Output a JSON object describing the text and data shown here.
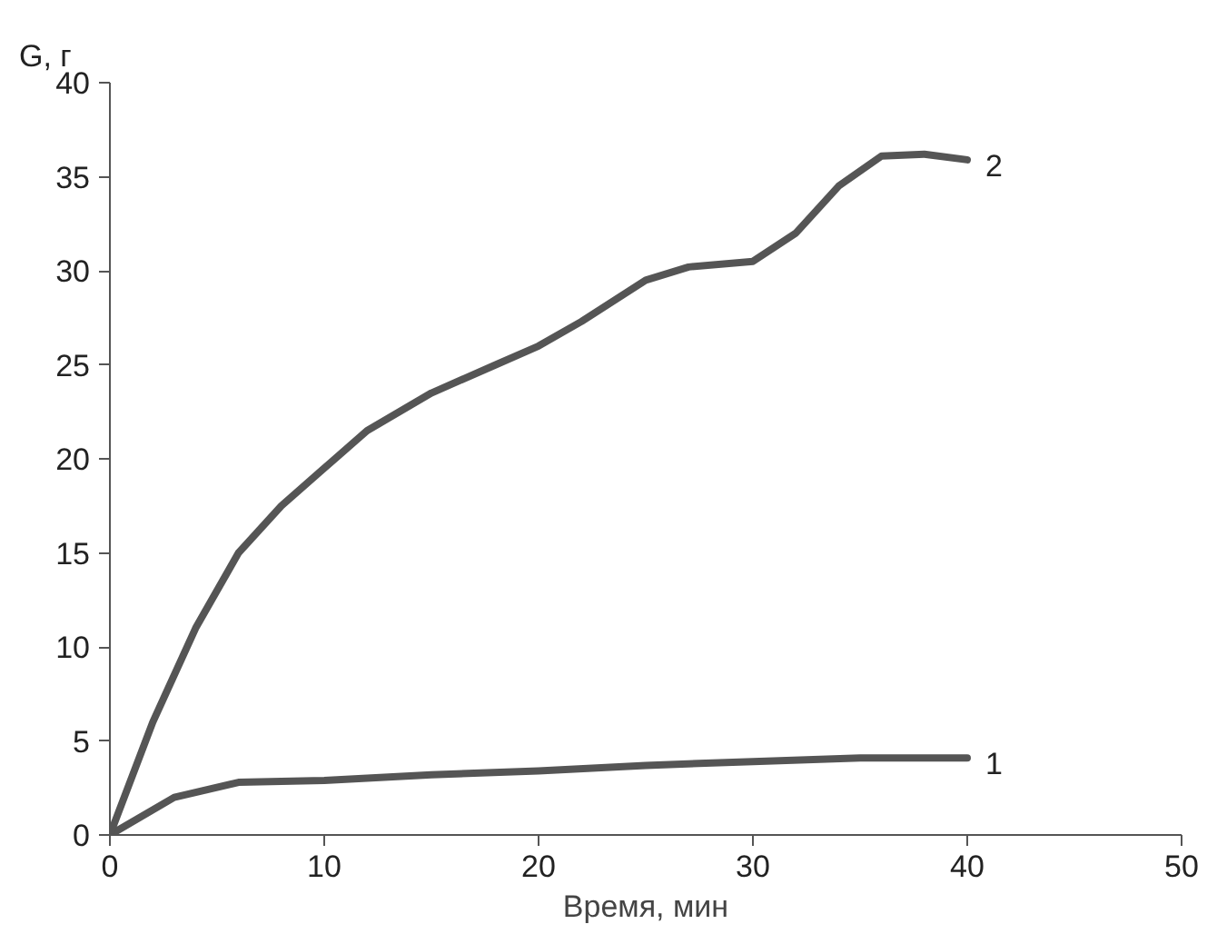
{
  "chart_data": {
    "type": "line",
    "xlabel": "Время, мин",
    "ylabel": "G, г",
    "xlim": [
      0,
      50
    ],
    "ylim": [
      0,
      40
    ],
    "xticks": [
      0,
      10,
      20,
      30,
      40,
      50
    ],
    "yticks": [
      0,
      5,
      10,
      15,
      20,
      25,
      30,
      35,
      40
    ],
    "grid": false,
    "marker": "none",
    "line_style": "solid",
    "series": [
      {
        "name": "1",
        "color": "#555555",
        "x": [
          0,
          3,
          6,
          10,
          15,
          20,
          25,
          30,
          35,
          40
        ],
        "values": [
          0,
          2,
          2.8,
          2.9,
          3.2,
          3.4,
          3.7,
          3.9,
          4.1,
          4.1
        ]
      },
      {
        "name": "2",
        "color": "#555555",
        "x": [
          0,
          2,
          4,
          6,
          8,
          10,
          12,
          15,
          18,
          20,
          22,
          25,
          27,
          30,
          32,
          34,
          36,
          38,
          40
        ],
        "values": [
          0,
          6,
          11,
          15,
          17.5,
          19.5,
          21.5,
          23.5,
          25,
          26,
          27.3,
          29.5,
          30.2,
          30.5,
          32,
          34.5,
          36.1,
          36.2,
          35.9
        ]
      }
    ]
  }
}
